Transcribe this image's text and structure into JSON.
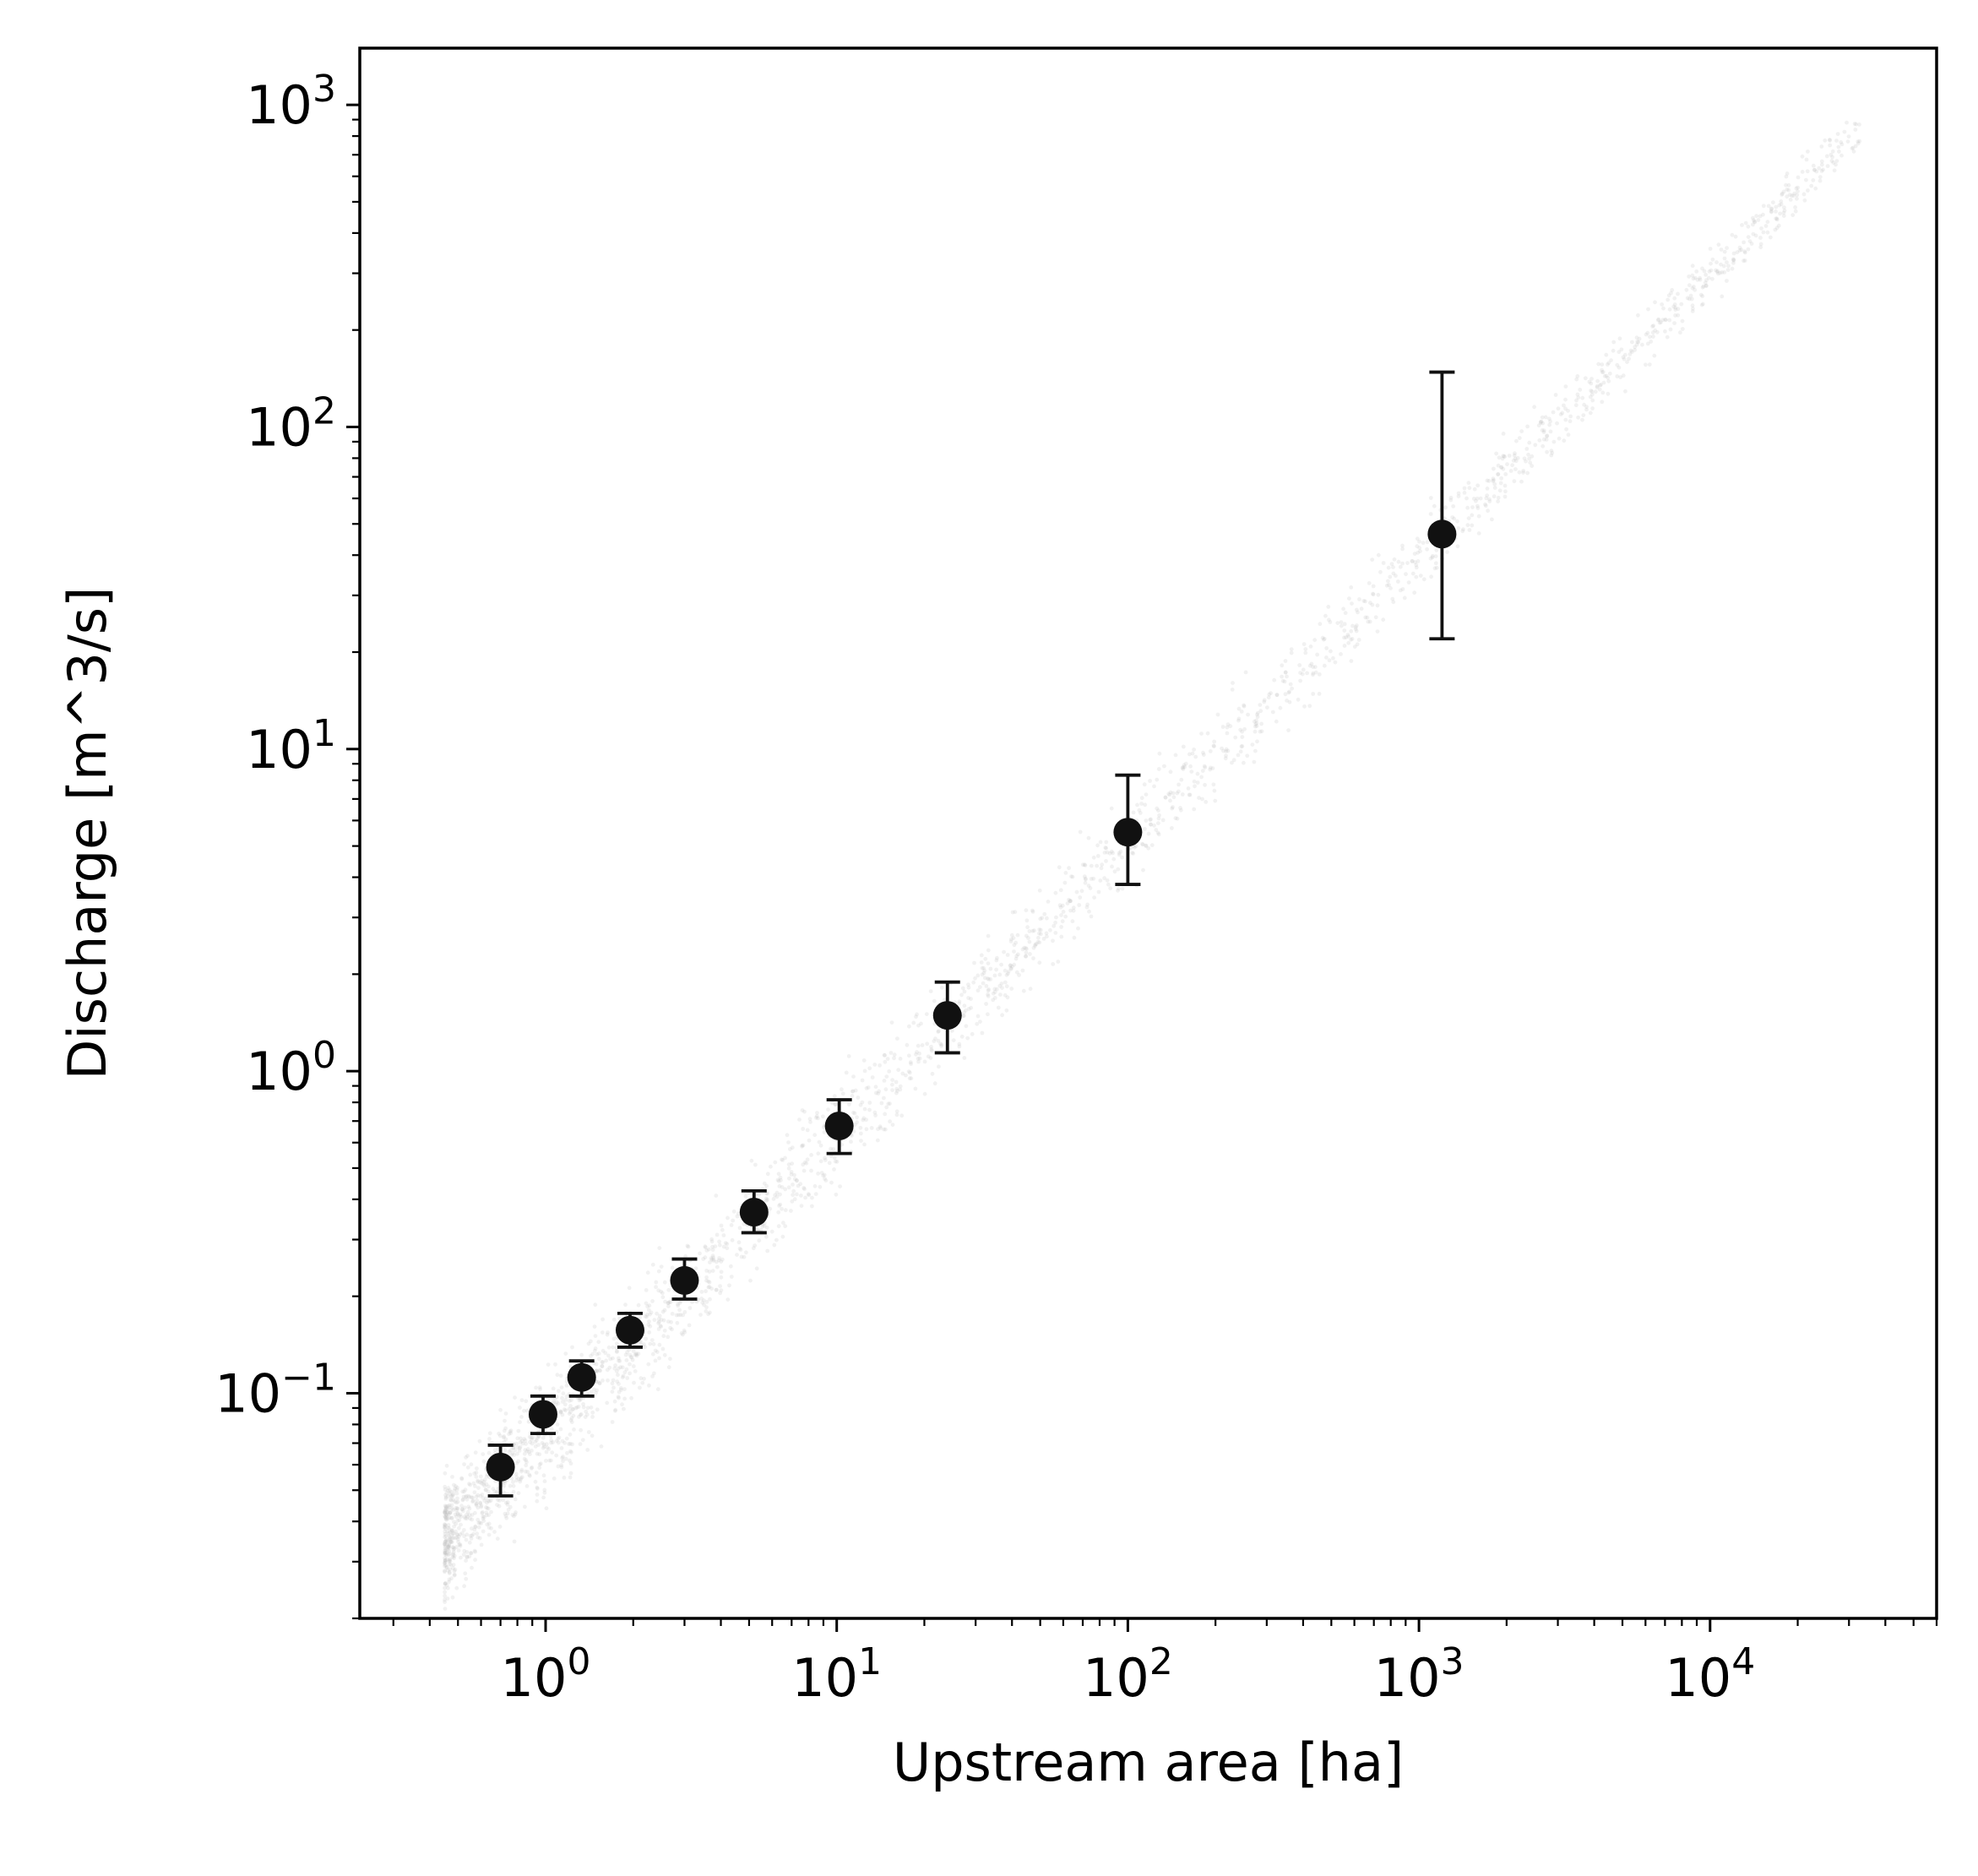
{
  "chart_data": {
    "type": "scatter",
    "title": "",
    "xlabel": "Upstream area [ha]",
    "ylabel": "Discharge [m^3/s]",
    "x_scale": "log",
    "y_scale": "log",
    "xlim": [
      0.23,
      60000
    ],
    "ylim": [
      0.02,
      1500
    ],
    "grid": false,
    "x_ticks": [
      {
        "value": 1,
        "base": "10",
        "exp": "0"
      },
      {
        "value": 10,
        "base": "10",
        "exp": "1"
      },
      {
        "value": 100,
        "base": "10",
        "exp": "2"
      },
      {
        "value": 1000,
        "base": "10",
        "exp": "3"
      },
      {
        "value": 10000,
        "base": "10",
        "exp": "4"
      }
    ],
    "y_ticks": [
      {
        "value": 0.1,
        "base": "10",
        "exp": "−1"
      },
      {
        "value": 1,
        "base": "10",
        "exp": "0"
      },
      {
        "value": 10,
        "base": "10",
        "exp": "1"
      },
      {
        "value": 100,
        "base": "10",
        "exp": "2"
      },
      {
        "value": 1000,
        "base": "10",
        "exp": "3"
      }
    ],
    "series": [
      {
        "marker_color": "#111111",
        "x": [
          0.7,
          0.98,
          1.33,
          1.95,
          3.0,
          5.2,
          10.2,
          24,
          100,
          1200
        ],
        "y": [
          0.059,
          0.086,
          0.112,
          0.157,
          0.224,
          0.365,
          0.676,
          1.49,
          5.52,
          46.5
        ],
        "y_low": [
          0.048,
          0.075,
          0.098,
          0.139,
          0.196,
          0.315,
          0.555,
          1.14,
          3.8,
          22
        ],
        "y_high": [
          0.069,
          0.098,
          0.126,
          0.177,
          0.261,
          0.425,
          0.815,
          1.89,
          8.3,
          148
        ]
      }
    ],
    "background_cloud": {
      "color": "#bdbdbd",
      "x_range": [
        0.45,
        33000
      ],
      "y_at_x_min": 0.035,
      "y_at_x_max": 850
    }
  }
}
